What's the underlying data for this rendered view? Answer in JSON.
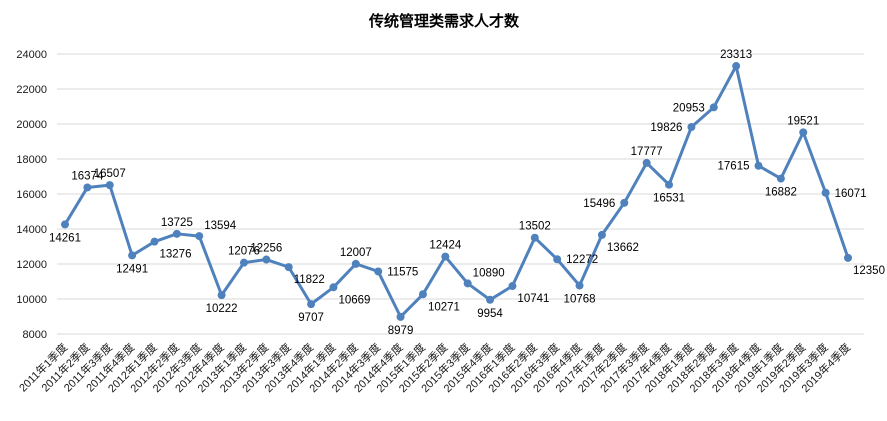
{
  "chart_data": {
    "type": "line",
    "title": "传统管理类需求人才数",
    "categories": [
      "2011年1季度",
      "2011年2季度",
      "2011年3季度",
      "2011年4季度",
      "2012年1季度",
      "2012年2季度",
      "2012年3季度",
      "2012年4季度",
      "2013年1季度",
      "2013年2季度",
      "2013年3季度",
      "2013年4季度",
      "2014年1季度",
      "2014年2季度",
      "2014年3季度",
      "2014年4季度",
      "2015年1季度",
      "2015年2季度",
      "2015年3季度",
      "2015年4季度",
      "2016年1季度",
      "2016年2季度",
      "2016年3季度",
      "2016年4季度",
      "2017年1季度",
      "2017年2季度",
      "2017年3季度",
      "2017年4季度",
      "2018年1季度",
      "2018年2季度",
      "2018年3季度",
      "2018年4季度",
      "2019年1季度",
      "2019年2季度",
      "2019年3季度",
      "2019年4季度"
    ],
    "values": [
      14261,
      16374,
      16507,
      12491,
      13276,
      13725,
      13594,
      10222,
      12076,
      12256,
      11822,
      9707,
      10669,
      12007,
      11575,
      8979,
      10271,
      12424,
      10890,
      9954,
      10741,
      13502,
      12272,
      10768,
      13662,
      15496,
      17777,
      16531,
      19826,
      20953,
      23313,
      17615,
      16882,
      19521,
      16071,
      12350
    ],
    "label_positions": [
      "below",
      "above",
      "above",
      "below",
      "below-right",
      "above",
      "above-right",
      "below",
      "above",
      "above",
      "below-right",
      "below",
      "below-right",
      "above",
      "right",
      "below",
      "below-right",
      "above",
      "above-right",
      "below",
      "below-right",
      "above",
      "right",
      "below",
      "below-right",
      "left",
      "above",
      "below",
      "left",
      "left",
      "above",
      "left",
      "below",
      "above",
      "right",
      "below-right"
    ],
    "xlabel": "",
    "ylabel": "",
    "ylim": [
      8000,
      24000
    ],
    "y_tick_step": 2000,
    "grid": true,
    "legend": "none",
    "line_color": "#4F81BD",
    "marker_color": "#4F81BD",
    "gridline_color": "#D9D9D9"
  }
}
